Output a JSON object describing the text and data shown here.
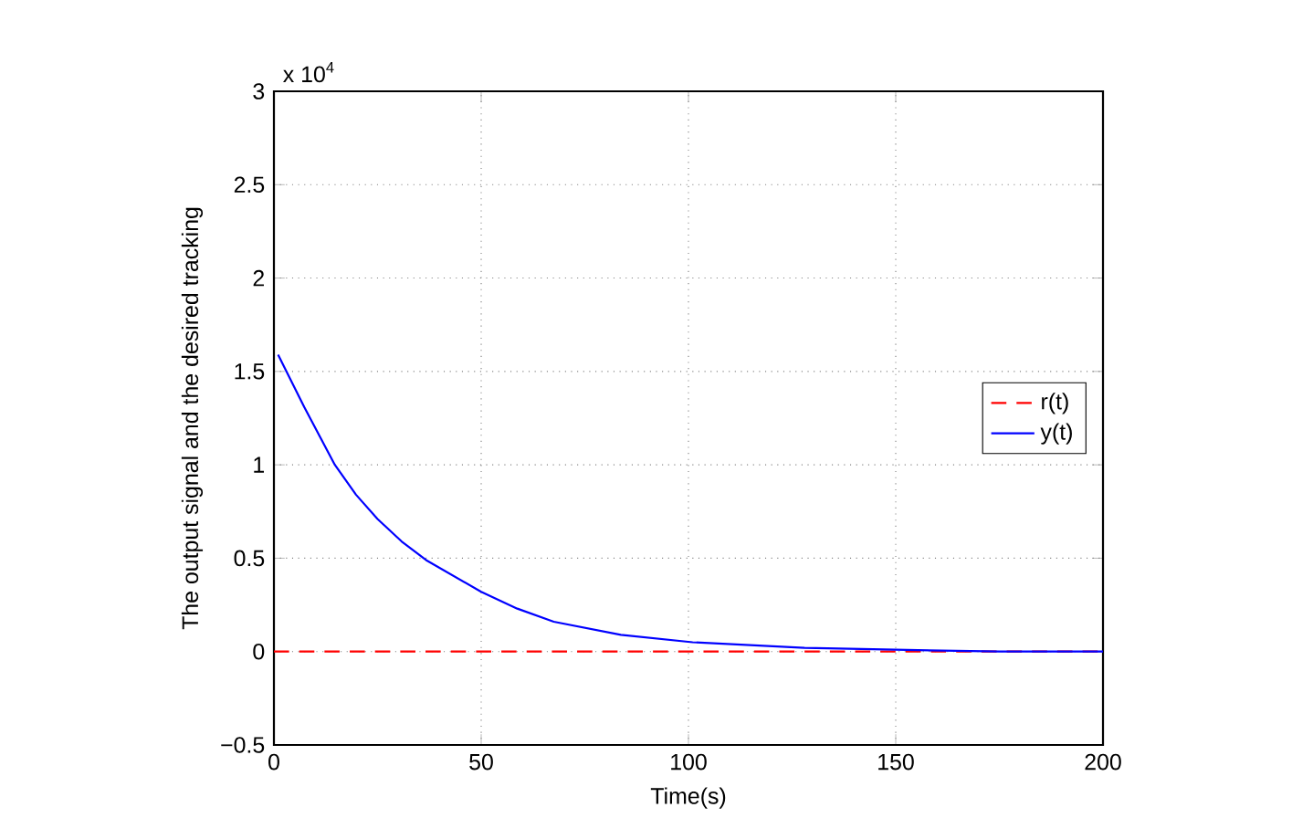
{
  "chart_data": {
    "type": "line",
    "xlabel": "Time(s)",
    "ylabel": "The output signal and the desired tracking",
    "annotations": [
      "x 10$^{4}$"
    ],
    "xlim": [
      0,
      200
    ],
    "xticks": [
      0,
      50,
      100,
      150,
      200
    ],
    "ylim": [
      -0.5,
      3
    ],
    "yticks": [
      {
        "value": -0.5,
        "label": "−0.5"
      },
      0,
      0.5,
      1,
      1.5,
      2,
      2.5,
      3
    ],
    "grid": true,
    "legend": "right",
    "series": [
      {
        "name": "r(t)",
        "color": "#ff0000",
        "line_style": "dashed",
        "x": [
          0,
          200
        ],
        "values": [
          0,
          0
        ]
      },
      {
        "name": "y(t)",
        "color": "#0000ff",
        "line_style": "solid",
        "x": [
          1,
          7.3,
          14.7,
          19.8,
          25,
          30.8,
          36.7,
          50,
          58.7,
          67.5,
          83.7,
          101,
          128,
          150,
          175,
          200
        ],
        "values": [
          1.59,
          1.31,
          1.0,
          0.84,
          0.71,
          0.59,
          0.49,
          0.32,
          0.23,
          0.16,
          0.09,
          0.05,
          0.02,
          0.01,
          0.0,
          0.0
        ]
      }
    ]
  }
}
